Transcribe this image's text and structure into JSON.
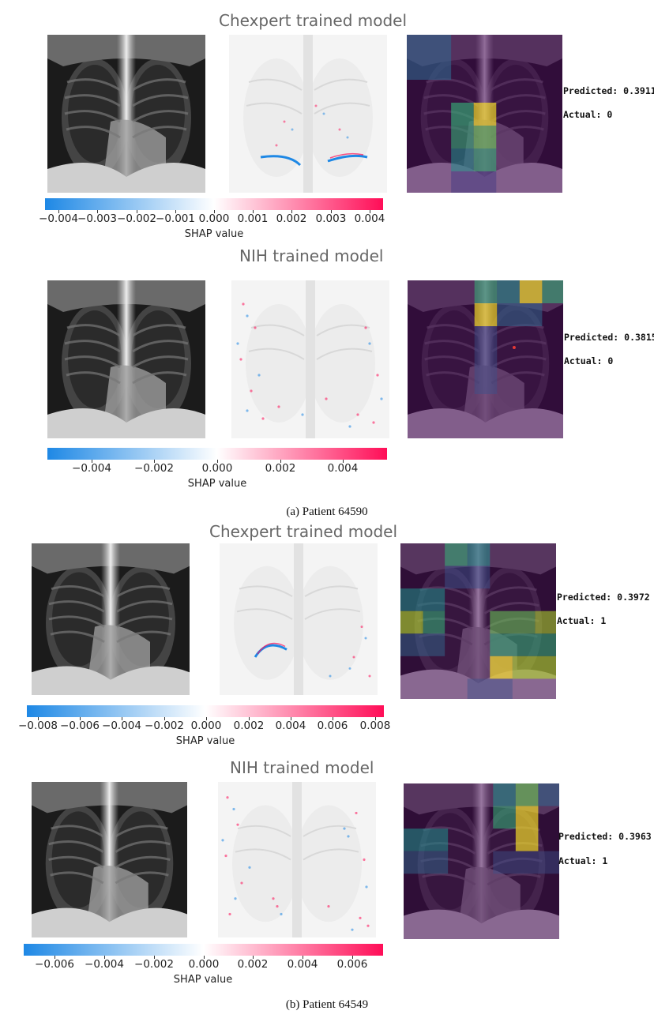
{
  "section_a": {
    "caption": "(a) Patient 64590",
    "chexpert": {
      "title": "Chexpert trained model",
      "colorbar": {
        "label": "SHAP value",
        "ticks": [
          "−0.004",
          "−0.003",
          "−0.002",
          "−0.001",
          "0.000",
          "0.001",
          "0.002",
          "0.003",
          "0.004"
        ]
      },
      "predicted": "Predicted: 0.3911",
      "actual": "Actual: 0"
    },
    "nih": {
      "title": "NIH trained model",
      "colorbar": {
        "label": "SHAP value",
        "ticks": [
          "−0.004",
          "−0.002",
          "0.000",
          "0.002",
          "0.004"
        ]
      },
      "predicted": "Predicted: 0.3815",
      "actual": "Actual: 0"
    }
  },
  "section_b": {
    "caption": "(b) Patient 64549",
    "chexpert": {
      "title": "Chexpert trained model",
      "colorbar": {
        "label": "SHAP value",
        "ticks": [
          "−0.008",
          "−0.006",
          "−0.004",
          "−0.002",
          "0.000",
          "0.002",
          "0.004",
          "0.006",
          "0.008"
        ]
      },
      "predicted": "Predicted: 0.3972",
      "actual": "Actual: 1"
    },
    "nih": {
      "title": "NIH trained model",
      "colorbar": {
        "label": "SHAP value",
        "ticks": [
          "−0.006",
          "−0.004",
          "−0.002",
          "0.000",
          "0.002",
          "0.004",
          "0.006"
        ]
      },
      "predicted": "Predicted: 0.3963",
      "actual": "Actual: 1"
    }
  },
  "colors": {
    "shap_negative": "#1e88e5",
    "shap_positive": "#ff0d57",
    "heat_low": "#440154",
    "heat_high": "#fde725"
  }
}
